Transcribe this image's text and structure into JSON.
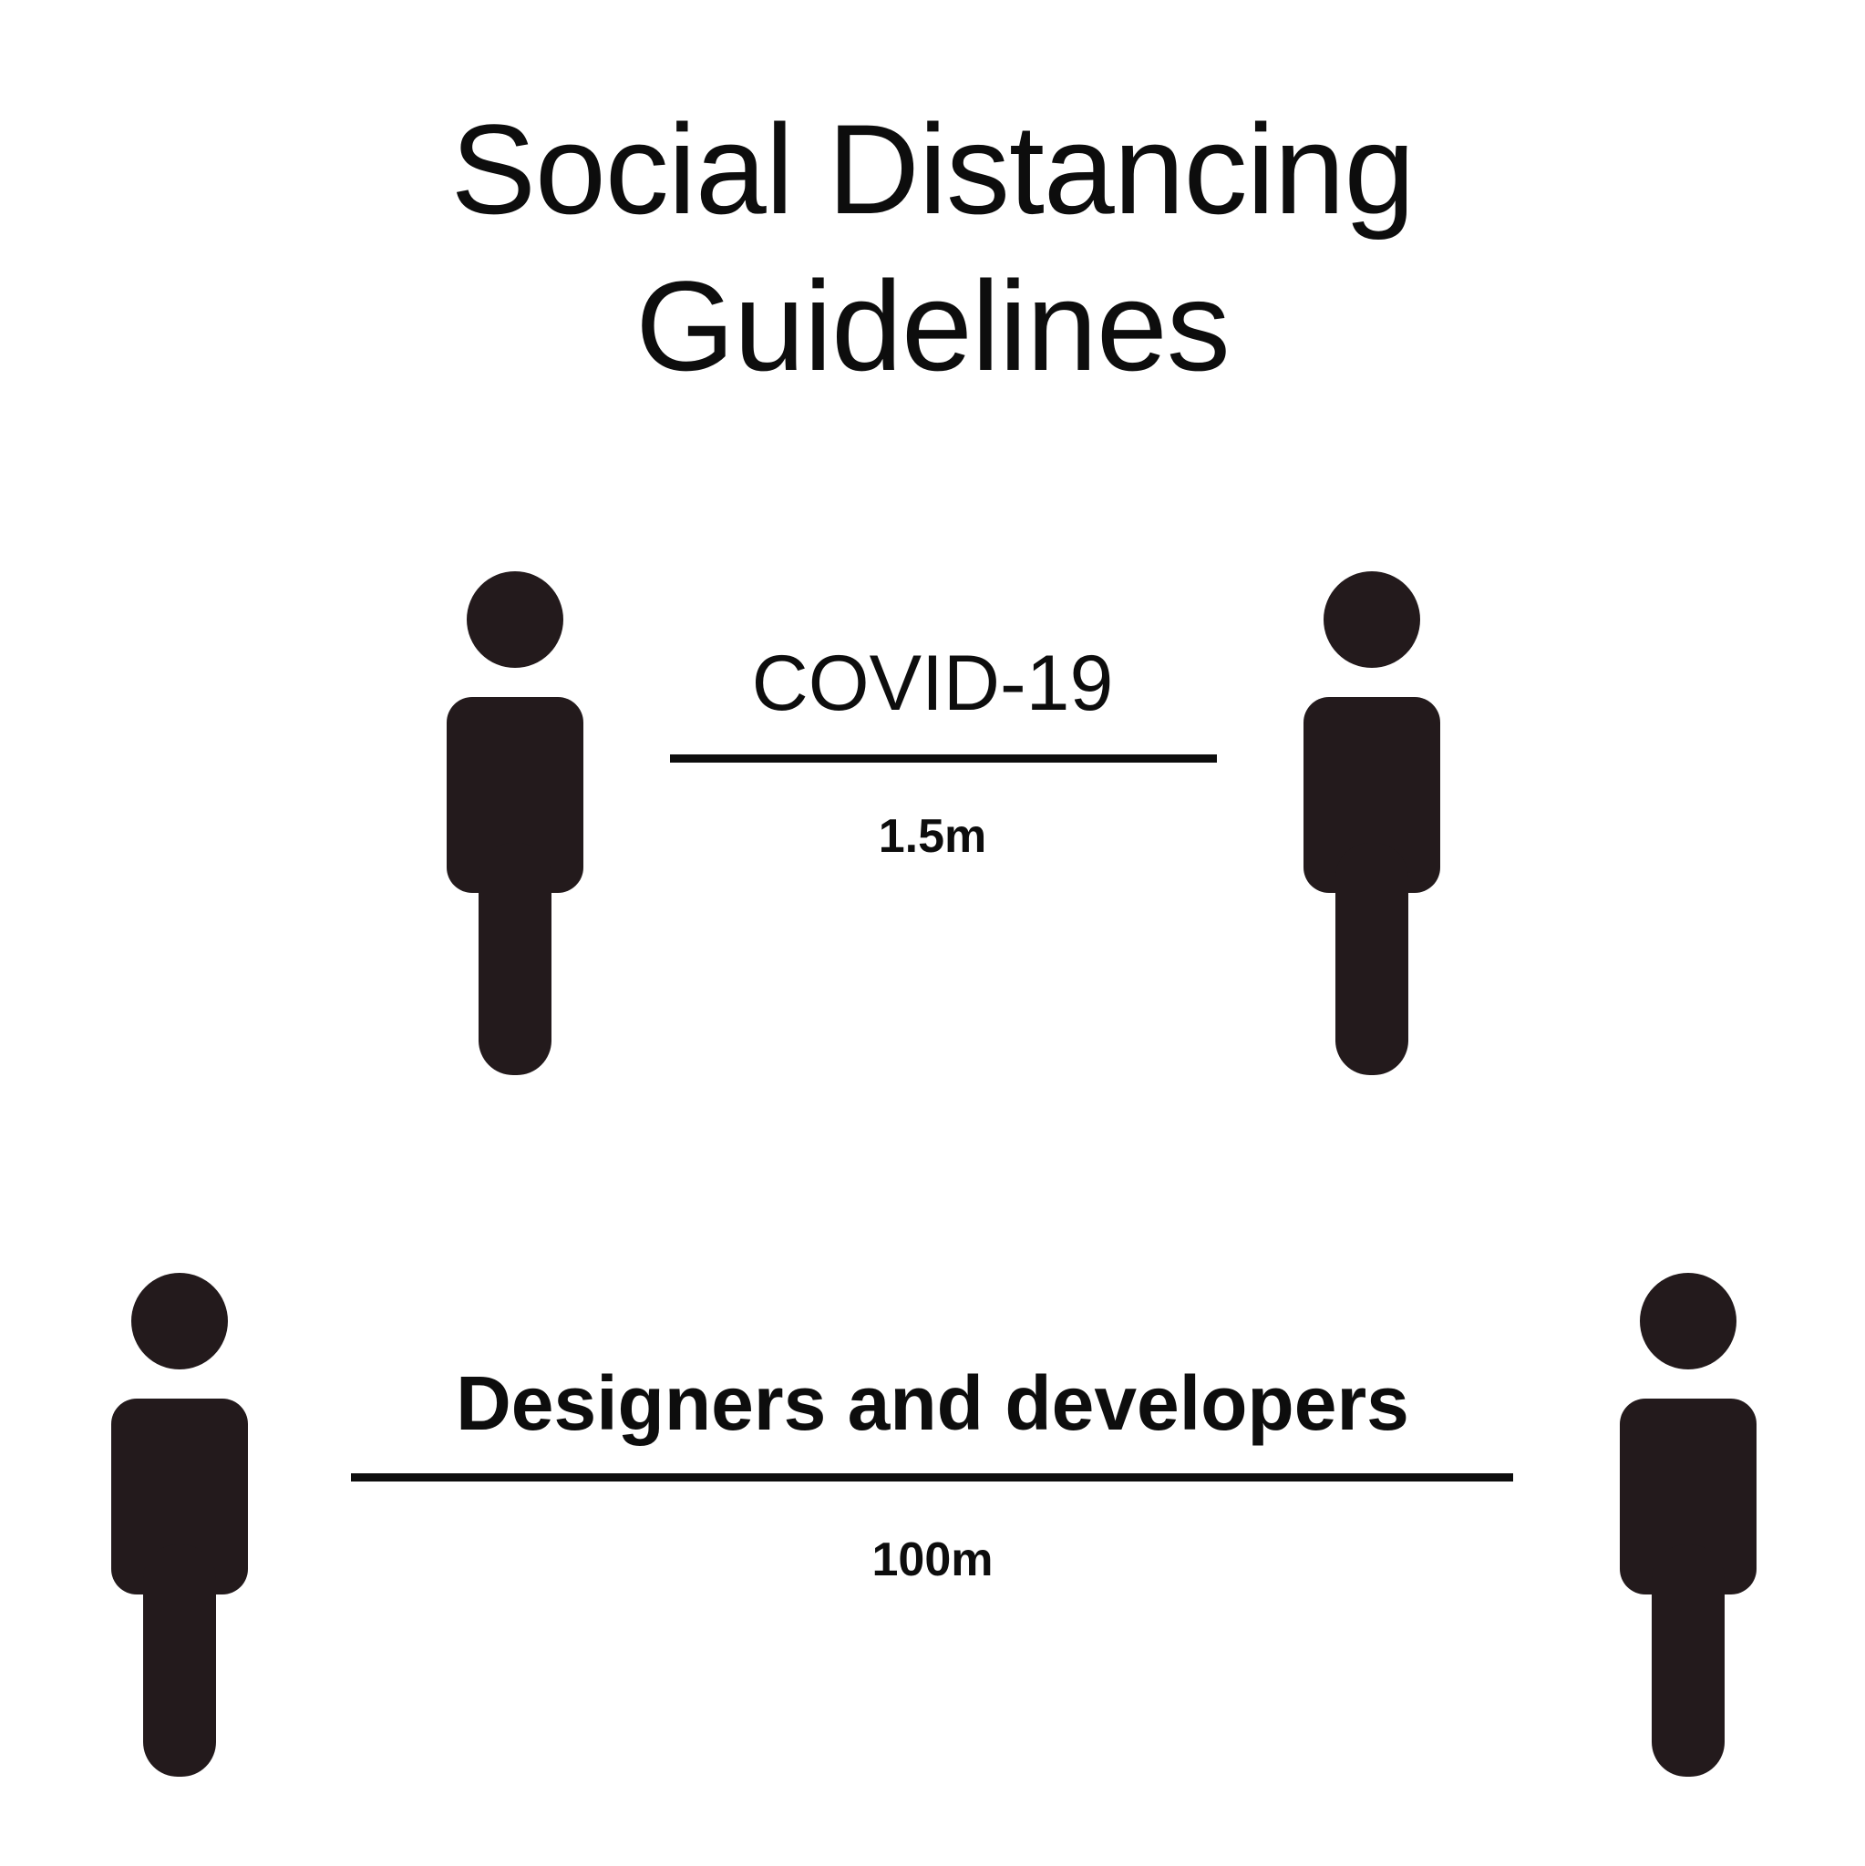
{
  "title": {
    "line1": "Social Distancing",
    "line2": "Guidelines"
  },
  "rows": [
    {
      "label": "COVID-19",
      "distance": "1.5m"
    },
    {
      "label": "Designers and developers",
      "distance": "100m"
    }
  ],
  "colors": {
    "figure": "#231a1c",
    "text": "#0d0d0d",
    "background": "#ffffff"
  },
  "icons": [
    "person-icon"
  ]
}
